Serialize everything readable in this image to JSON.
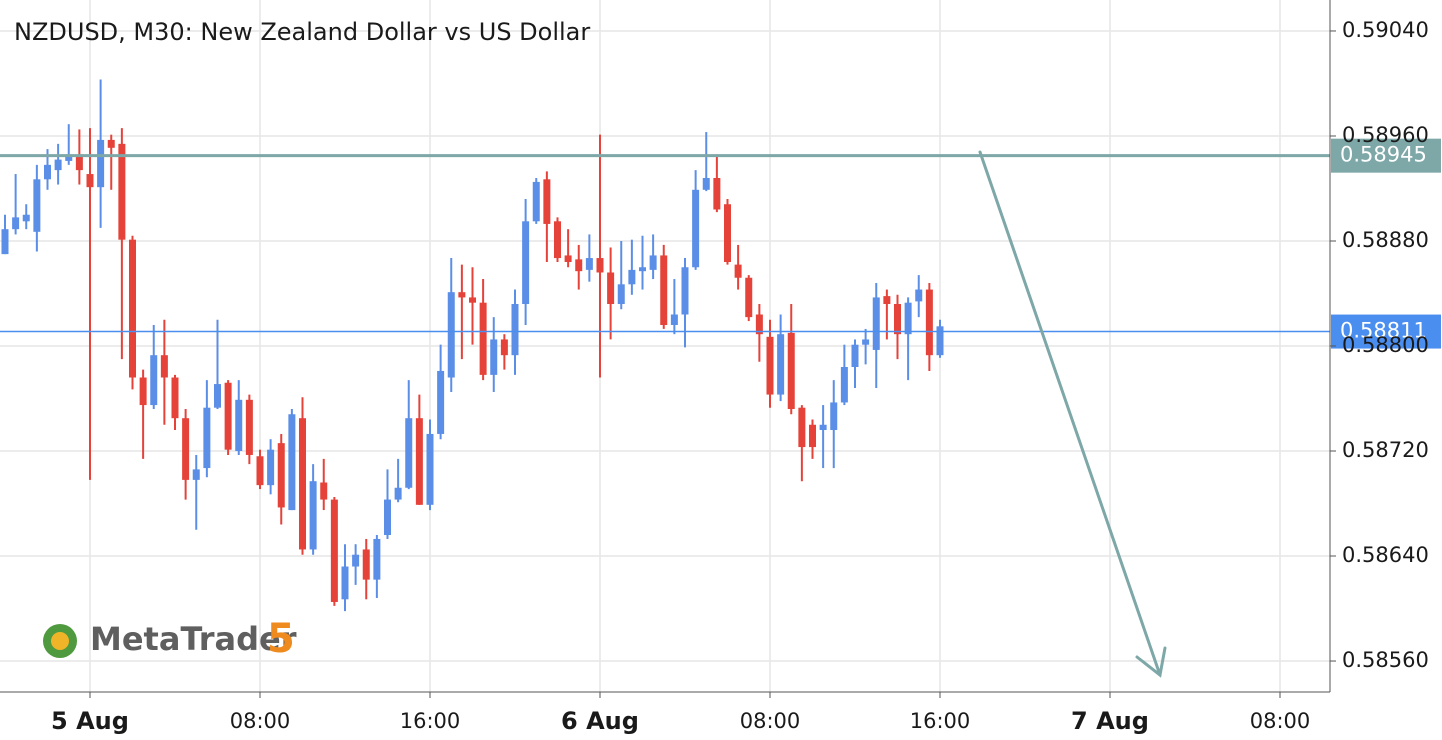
{
  "chart_data": {
    "type": "candlestick",
    "title": "NZDUSD, M30: New Zealand Dollar vs US Dollar",
    "watermark": {
      "name": "MetaTrader",
      "version": "5"
    },
    "up_color": "#5b8ee6",
    "down_color": "#e5423a",
    "grid": true,
    "xlim": [
      -4.235,
      58.353
    ],
    "xticks": [
      {
        "value": 0,
        "label": "5 Aug"
      },
      {
        "value": 8,
        "label": "08:00"
      },
      {
        "value": 16,
        "label": "16:00"
      },
      {
        "value": 24,
        "label": "6 Aug"
      },
      {
        "value": 32,
        "label": "08:00"
      },
      {
        "value": 40,
        "label": "16:00"
      },
      {
        "value": 48,
        "label": "7 Aug"
      },
      {
        "value": 56,
        "label": "08:00"
      }
    ],
    "ylim": [
      0.585364,
      0.590636
    ],
    "yticks": [
      {
        "value": 0.5856,
        "label": "0.58560"
      },
      {
        "value": 0.5864,
        "label": "0.58640"
      },
      {
        "value": 0.5872,
        "label": "0.58720"
      },
      {
        "value": 0.588,
        "label": "0.58800"
      },
      {
        "value": 0.5888,
        "label": "0.58880"
      },
      {
        "value": 0.5896,
        "label": "0.58960"
      },
      {
        "value": 0.5904,
        "label": "0.59040"
      }
    ],
    "hlines": [
      {
        "value": 0.58945,
        "label": "0.58945",
        "color": "#7ea7a8"
      },
      {
        "value": 0.58811,
        "label": "0.58811",
        "color": "#4a8ef0"
      }
    ],
    "x": [
      -4,
      -3.5,
      -3,
      -2.5,
      -2,
      -1.5,
      -1,
      -0.5,
      0,
      0.5,
      1,
      1.5,
      2,
      2.5,
      3,
      3.5,
      4,
      4.5,
      5,
      5.5,
      6,
      6.5,
      7,
      7.5,
      8,
      8.5,
      9,
      9.5,
      10,
      10.5,
      11,
      11.5,
      12,
      12.5,
      13,
      13.5,
      14,
      14.5,
      15,
      15.5,
      16,
      16.5,
      17,
      17.5,
      18,
      18.5,
      19,
      19.5,
      20,
      20.5,
      21,
      21.5,
      22,
      22.5,
      23,
      23.5,
      24,
      24.5,
      25,
      25.5,
      26,
      26.5,
      27,
      27.5,
      28,
      28.5,
      29,
      29.5,
      30,
      30.5,
      31,
      31.5,
      32,
      32.5,
      33,
      33.5,
      34,
      34.5,
      35,
      35.5,
      36,
      36.5,
      37,
      37.5,
      38,
      38.5,
      39,
      39.5,
      40
    ],
    "open": [
      0.5887,
      0.58889,
      0.58895,
      0.58887,
      0.58927,
      0.58934,
      0.58941,
      0.58946,
      0.58931,
      0.58921,
      0.58957,
      0.58954,
      0.58881,
      0.58776,
      0.58755,
      0.58793,
      0.58776,
      0.58745,
      0.58698,
      0.58707,
      0.58753,
      0.58772,
      0.5872,
      0.58759,
      0.58716,
      0.58694,
      0.58726,
      0.58675,
      0.58745,
      0.58645,
      0.58696,
      0.58683,
      0.58607,
      0.58632,
      0.58645,
      0.58622,
      0.58656,
      0.58683,
      0.58692,
      0.58745,
      0.58679,
      0.58733,
      0.58776,
      0.58841,
      0.58837,
      0.58833,
      0.58778,
      0.58805,
      0.58793,
      0.58832,
      0.58895,
      0.58927,
      0.58895,
      0.58869,
      0.58866,
      0.58858,
      0.58867,
      0.58856,
      0.58832,
      0.58847,
      0.58857,
      0.58858,
      0.58869,
      0.58816,
      0.58824,
      0.5886,
      0.58919,
      0.58928,
      0.58908,
      0.58862,
      0.58852,
      0.58824,
      0.58807,
      0.58763,
      0.5881,
      0.58753,
      0.5874,
      0.58736,
      0.58736,
      0.58757,
      0.58784,
      0.58801,
      0.58797,
      0.58838,
      0.58832,
      0.58809,
      0.58834,
      0.58843,
      0.58793
    ],
    "high": [
      0.589,
      0.58931,
      0.58908,
      0.58938,
      0.5895,
      0.58954,
      0.58969,
      0.58965,
      0.58966,
      0.59003,
      0.58961,
      0.58966,
      0.58884,
      0.58782,
      0.58816,
      0.5882,
      0.58778,
      0.58752,
      0.58717,
      0.58774,
      0.5882,
      0.58774,
      0.58774,
      0.58763,
      0.58721,
      0.58729,
      0.58733,
      0.58752,
      0.58761,
      0.5871,
      0.58714,
      0.58685,
      0.58649,
      0.58649,
      0.58653,
      0.58656,
      0.58706,
      0.58714,
      0.58774,
      0.58763,
      0.58744,
      0.58801,
      0.58867,
      0.58862,
      0.5886,
      0.58851,
      0.58822,
      0.58809,
      0.58843,
      0.58912,
      0.58928,
      0.58933,
      0.58898,
      0.58889,
      0.58877,
      0.58885,
      0.58961,
      0.58875,
      0.5888,
      0.58881,
      0.58884,
      0.58885,
      0.58877,
      0.58851,
      0.58867,
      0.58934,
      0.58963,
      0.58946,
      0.58912,
      0.58877,
      0.58854,
      0.58832,
      0.5882,
      0.58824,
      0.58832,
      0.58755,
      0.58744,
      0.58755,
      0.58774,
      0.58801,
      0.58805,
      0.58813,
      0.58848,
      0.58843,
      0.58839,
      0.58837,
      0.58854,
      0.58848,
      0.5882
    ],
    "low": [
      0.5887,
      0.58885,
      0.58889,
      0.58872,
      0.58919,
      0.58923,
      0.58938,
      0.58923,
      0.58698,
      0.5889,
      0.58919,
      0.5879,
      0.58767,
      0.58714,
      0.58752,
      0.5874,
      0.58736,
      0.58683,
      0.5866,
      0.587,
      0.58752,
      0.58717,
      0.58717,
      0.5871,
      0.58691,
      0.58687,
      0.58664,
      0.58675,
      0.58641,
      0.58641,
      0.58675,
      0.58602,
      0.58598,
      0.58618,
      0.58607,
      0.58608,
      0.58653,
      0.58681,
      0.58691,
      0.58679,
      0.58675,
      0.58729,
      0.58765,
      0.5879,
      0.58801,
      0.58774,
      0.58765,
      0.58782,
      0.58778,
      0.58816,
      0.58893,
      0.58864,
      0.58864,
      0.5886,
      0.58843,
      0.58849,
      0.58776,
      0.58805,
      0.58828,
      0.58839,
      0.58843,
      0.58851,
      0.58813,
      0.58809,
      0.58799,
      0.58858,
      0.58918,
      0.58902,
      0.58862,
      0.58843,
      0.58819,
      0.58788,
      0.58753,
      0.58758,
      0.58748,
      0.58697,
      0.58714,
      0.58707,
      0.58707,
      0.58755,
      0.58768,
      0.58786,
      0.58768,
      0.58805,
      0.5879,
      0.58774,
      0.58822,
      0.58781,
      0.58791
    ],
    "close": [
      0.58889,
      0.58898,
      0.589,
      0.58927,
      0.58938,
      0.58942,
      0.58946,
      0.58934,
      0.58921,
      0.58957,
      0.58951,
      0.58881,
      0.58776,
      0.58755,
      0.58793,
      0.58776,
      0.58745,
      0.58698,
      0.58706,
      0.58753,
      0.58771,
      0.58721,
      0.58759,
      0.58717,
      0.58694,
      0.58721,
      0.58677,
      0.58748,
      0.58645,
      0.58697,
      0.58683,
      0.58605,
      0.58632,
      0.58641,
      0.58622,
      0.58653,
      0.58683,
      0.58692,
      0.58745,
      0.58679,
      0.58733,
      0.58781,
      0.58841,
      0.58837,
      0.58833,
      0.58778,
      0.58805,
      0.58793,
      0.58832,
      0.58895,
      0.58925,
      0.58893,
      0.58867,
      0.58864,
      0.58857,
      0.58867,
      0.58856,
      0.58832,
      0.58847,
      0.58858,
      0.5886,
      0.58869,
      0.58816,
      0.58824,
      0.5886,
      0.58919,
      0.58928,
      0.58904,
      0.58864,
      0.58852,
      0.58822,
      0.58809,
      0.58763,
      0.58809,
      0.58752,
      0.58723,
      0.58723,
      0.5874,
      0.58757,
      0.58784,
      0.58801,
      0.58805,
      0.58837,
      0.58832,
      0.58809,
      0.58833,
      0.58843,
      0.58793,
      0.58815
    ]
  }
}
